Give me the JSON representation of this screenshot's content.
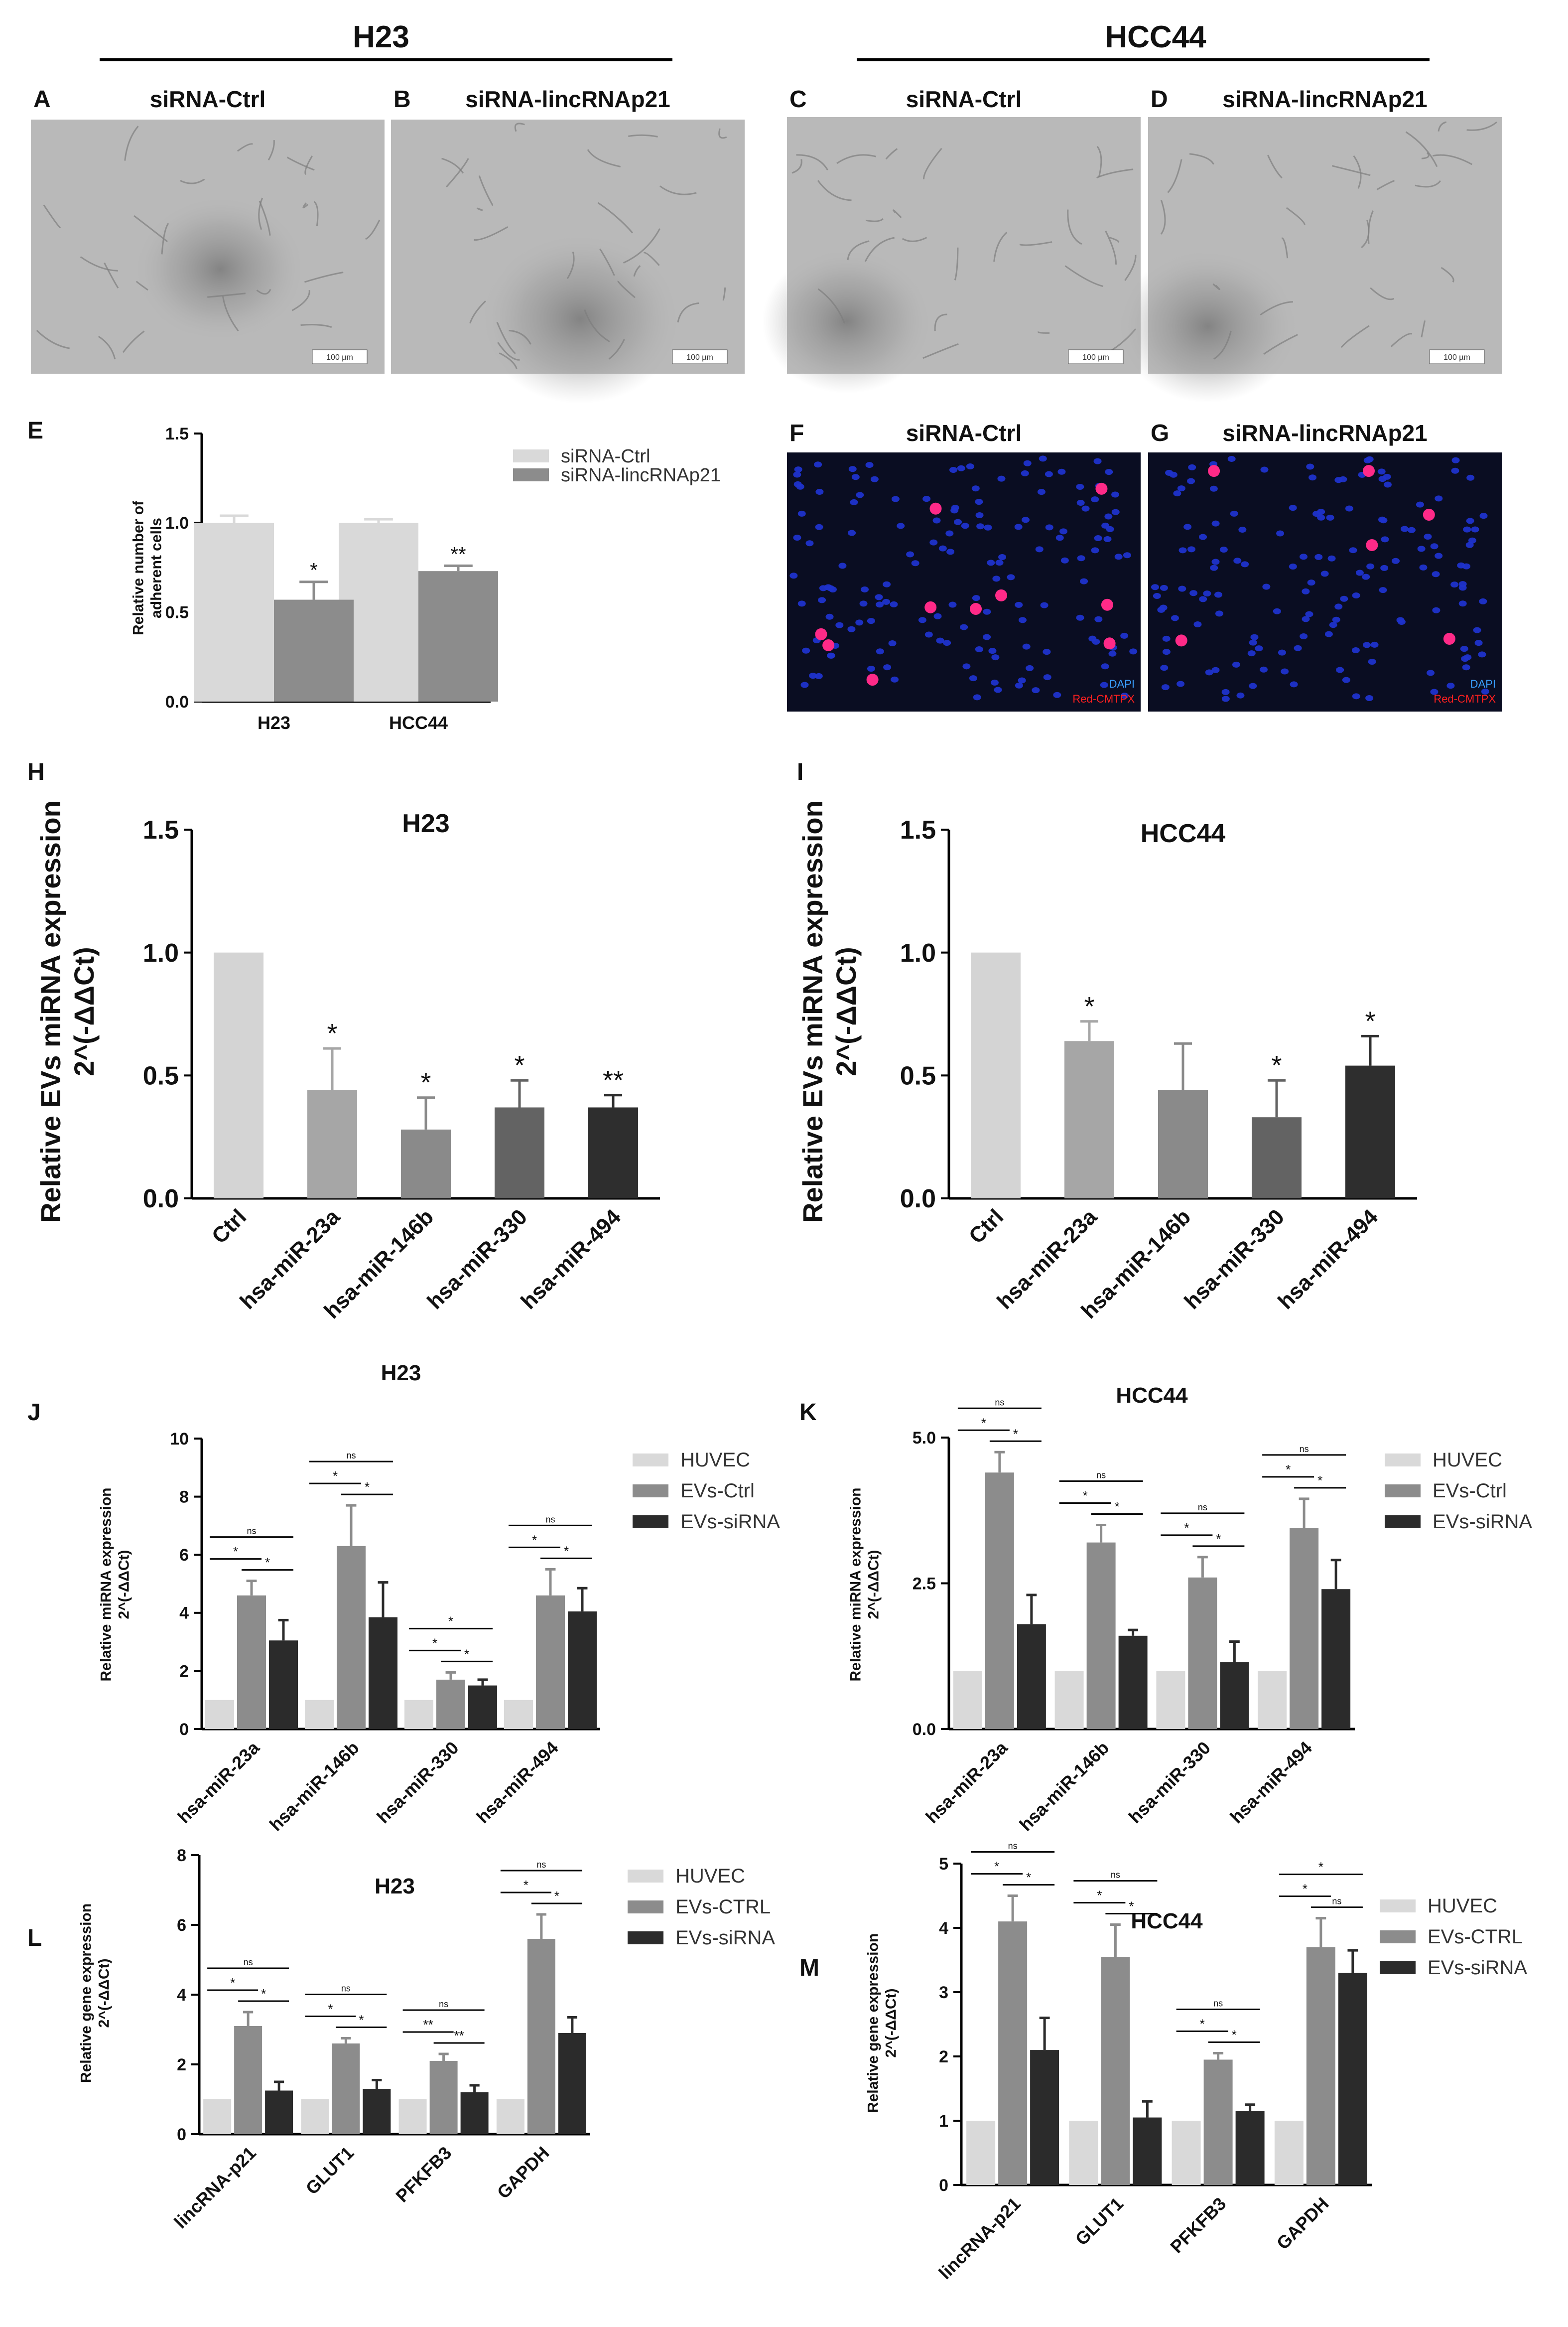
{
  "headers": {
    "left": "H23",
    "right": "HCC44"
  },
  "micrographs": [
    {
      "letter": "A",
      "title": "siRNA-Ctrl",
      "scale": "100 µm"
    },
    {
      "letter": "B",
      "title": "siRNA-lincRNAp21",
      "scale": "100 µm"
    },
    {
      "letter": "C",
      "title": "siRNA-Ctrl",
      "scale": "100 µm"
    },
    {
      "letter": "D",
      "title": "siRNA-lincRNAp21",
      "scale": "100 µm"
    }
  ],
  "fluorescence": [
    {
      "letter": "F",
      "title": "siRNA-Ctrl",
      "dapi": "DAPI",
      "stain": "Red-CMTPX"
    },
    {
      "letter": "G",
      "title": "siRNA-lincRNAp21",
      "dapi": "DAPI",
      "stain": "Red-CMTPX"
    }
  ],
  "colors": {
    "light": "#d9d9d9",
    "mid": "#8c8c8c",
    "dark": "#2b2b2b",
    "h1": "#d4d4d4",
    "h2": "#a6a6a6",
    "h3": "#8a8a8a",
    "h4": "#636363",
    "h5": "#2e2e2e",
    "dapi": "#1f33cc",
    "cmtpx": "#ff2a88"
  },
  "chart_data": [
    {
      "id": "E",
      "letter": "E",
      "type": "bar",
      "title": "",
      "ylabel": "Relative number of\nadherent cells",
      "categories": [
        "H23",
        "HCC44"
      ],
      "ylim": [
        0,
        1.5
      ],
      "yticks": [
        "0.0",
        "0.5",
        "1.0",
        "1.5"
      ],
      "series": [
        {
          "name": "siRNA-Ctrl",
          "color": "#d9d9d9",
          "values": [
            1.0,
            1.0
          ],
          "err": [
            0.04,
            0.02
          ]
        },
        {
          "name": "siRNA-lincRNAp21",
          "color": "#8c8c8c",
          "values": [
            0.57,
            0.73
          ],
          "err": [
            0.1,
            0.03
          ]
        }
      ],
      "marks": [
        {
          "series": 1,
          "cat": 0,
          "text": "*"
        },
        {
          "series": 1,
          "cat": 1,
          "text": "**"
        }
      ],
      "legend": "right"
    },
    {
      "id": "H",
      "letter": "H",
      "type": "bar",
      "title": "H23",
      "ylabel": "Relative EVs miRNA expression\n2^(-ΔΔCt)",
      "categories": [
        "Ctrl",
        "hsa-miR-23a",
        "hsa-miR-146b",
        "hsa-miR-330",
        "hsa-miR-494"
      ],
      "ylim": [
        0,
        1.5
      ],
      "yticks": [
        "0.0",
        "0.5",
        "1.0",
        "1.5"
      ],
      "values": [
        1.0,
        0.44,
        0.28,
        0.37,
        0.37
      ],
      "err": [
        0,
        0.17,
        0.13,
        0.11,
        0.05
      ],
      "colors": [
        "#d4d4d4",
        "#a6a6a6",
        "#8a8a8a",
        "#636363",
        "#2e2e2e"
      ],
      "marks": [
        "",
        "*",
        "*",
        "*",
        "**"
      ]
    },
    {
      "id": "I",
      "letter": "I",
      "type": "bar",
      "title": "HCC44",
      "ylabel": "Relative EVs miRNA expression\n2^(-ΔΔCt)",
      "categories": [
        "Ctrl",
        "hsa-miR-23a",
        "hsa-miR-146b",
        "hsa-miR-330",
        "hsa-miR-494"
      ],
      "ylim": [
        0,
        1.5
      ],
      "yticks": [
        "0.0",
        "0.5",
        "1.0",
        "1.5"
      ],
      "values": [
        1.0,
        0.64,
        0.44,
        0.33,
        0.54
      ],
      "err": [
        0,
        0.08,
        0.19,
        0.15,
        0.12
      ],
      "colors": [
        "#d4d4d4",
        "#a6a6a6",
        "#8a8a8a",
        "#636363",
        "#2e2e2e"
      ],
      "marks": [
        "",
        "*",
        "",
        "*",
        "*"
      ]
    },
    {
      "id": "J",
      "letter": "J",
      "type": "bar",
      "title": "H23",
      "ylabel": "Relative miRNA expression\n2^(-ΔΔCt)",
      "categories": [
        "hsa-miR-23a",
        "hsa-miR-146b",
        "hsa-miR-330",
        "hsa-miR-494"
      ],
      "ylim": [
        0,
        10
      ],
      "yticks": [
        "0",
        "2",
        "4",
        "6",
        "8",
        "10"
      ],
      "series": [
        {
          "name": "HUVEC",
          "color": "#d9d9d9",
          "values": [
            1,
            1,
            1,
            1
          ],
          "err": [
            0,
            0,
            0,
            0
          ]
        },
        {
          "name": "EVs-Ctrl",
          "color": "#8c8c8c",
          "values": [
            4.6,
            6.3,
            1.7,
            4.6
          ],
          "err": [
            0.5,
            1.4,
            0.25,
            0.9
          ]
        },
        {
          "name": "EVs-siRNA",
          "color": "#2b2b2b",
          "values": [
            3.05,
            3.85,
            1.5,
            4.05
          ],
          "err": [
            0.7,
            1.2,
            0.2,
            0.8
          ]
        }
      ],
      "comparisons": [
        [
          [
            "*",
            "*",
            "ns"
          ],
          [
            "*",
            "*",
            "ns"
          ],
          [
            "*",
            "*",
            "*"
          ],
          [
            "*",
            "*",
            "ns"
          ]
        ]
      ],
      "legend": "right"
    },
    {
      "id": "K",
      "letter": "K",
      "type": "bar",
      "title": "HCC44",
      "ylabel": "Relative miRNA expression\n2^(-ΔΔCt)",
      "categories": [
        "hsa-miR-23a",
        "hsa-miR-146b",
        "hsa-miR-330",
        "hsa-miR-494"
      ],
      "ylim": [
        0,
        5
      ],
      "yticks": [
        "0.0",
        "2.5",
        "5.0"
      ],
      "series": [
        {
          "name": "HUVEC",
          "color": "#d9d9d9",
          "values": [
            1,
            1,
            1,
            1
          ],
          "err": [
            0,
            0,
            0,
            0
          ]
        },
        {
          "name": "EVs-Ctrl",
          "color": "#8c8c8c",
          "values": [
            4.4,
            3.2,
            2.6,
            3.45
          ],
          "err": [
            0.35,
            0.3,
            0.35,
            0.5
          ]
        },
        {
          "name": "EVs-siRNA",
          "color": "#2b2b2b",
          "values": [
            1.8,
            1.6,
            1.15,
            2.4
          ],
          "err": [
            0.5,
            0.1,
            0.35,
            0.5
          ]
        }
      ],
      "comparisons": [
        [
          [
            "*",
            "*",
            "ns"
          ],
          [
            "*",
            "*",
            "ns"
          ],
          [
            "*",
            "*",
            "ns"
          ],
          [
            "*",
            "*",
            "ns"
          ]
        ]
      ],
      "legend": "right"
    },
    {
      "id": "L",
      "letter": "L",
      "type": "bar",
      "title": "H23",
      "ylabel": "Relative gene expression\n2^(-ΔΔCt)",
      "categories": [
        "lincRNA-p21",
        "GLUT1",
        "PFKFB3",
        "GAPDH"
      ],
      "ylim": [
        0,
        8
      ],
      "yticks": [
        "0",
        "2",
        "4",
        "6",
        "8"
      ],
      "series": [
        {
          "name": "HUVEC",
          "color": "#d9d9d9",
          "values": [
            1,
            1,
            1,
            1
          ],
          "err": [
            0,
            0,
            0,
            0
          ]
        },
        {
          "name": "EVs-CTRL",
          "color": "#8c8c8c",
          "values": [
            3.1,
            2.6,
            2.1,
            5.6
          ],
          "err": [
            0.4,
            0.15,
            0.2,
            0.7
          ]
        },
        {
          "name": "EVs-siRNA",
          "color": "#2b2b2b",
          "values": [
            1.25,
            1.3,
            1.2,
            2.9
          ],
          "err": [
            0.25,
            0.25,
            0.2,
            0.45
          ]
        }
      ],
      "comparisons": [
        [
          [
            "*",
            "*",
            "ns"
          ],
          [
            "*",
            "*",
            "ns"
          ],
          [
            "**",
            "**",
            "ns"
          ],
          [
            "*",
            "*",
            "ns"
          ]
        ]
      ],
      "legend": "right"
    },
    {
      "id": "M",
      "letter": "M",
      "type": "bar",
      "title": "HCC44",
      "ylabel": "Relative gene expression\n2^(-ΔΔCt)",
      "categories": [
        "lincRNA-p21",
        "GLUT1",
        "PFKFB3",
        "GAPDH"
      ],
      "ylim": [
        0,
        5
      ],
      "yticks": [
        "0",
        "1",
        "2",
        "3",
        "4",
        "5"
      ],
      "series": [
        {
          "name": "HUVEC",
          "color": "#d9d9d9",
          "values": [
            1,
            1,
            1,
            1
          ],
          "err": [
            0,
            0,
            0,
            0
          ]
        },
        {
          "name": "EVs-CTRL",
          "color": "#8c8c8c",
          "values": [
            4.1,
            3.55,
            1.95,
            3.7
          ],
          "err": [
            0.4,
            0.5,
            0.1,
            0.45
          ]
        },
        {
          "name": "EVs-siRNA",
          "color": "#2b2b2b",
          "values": [
            2.1,
            1.05,
            1.15,
            3.3
          ],
          "err": [
            0.5,
            0.25,
            0.1,
            0.35
          ]
        }
      ],
      "comparisons": [
        [
          [
            "*",
            "*",
            "ns"
          ],
          [
            "*",
            "*",
            "ns"
          ],
          [
            "*",
            "*",
            "ns"
          ],
          [
            "*",
            "ns",
            "*"
          ]
        ]
      ],
      "legend": "right"
    }
  ]
}
